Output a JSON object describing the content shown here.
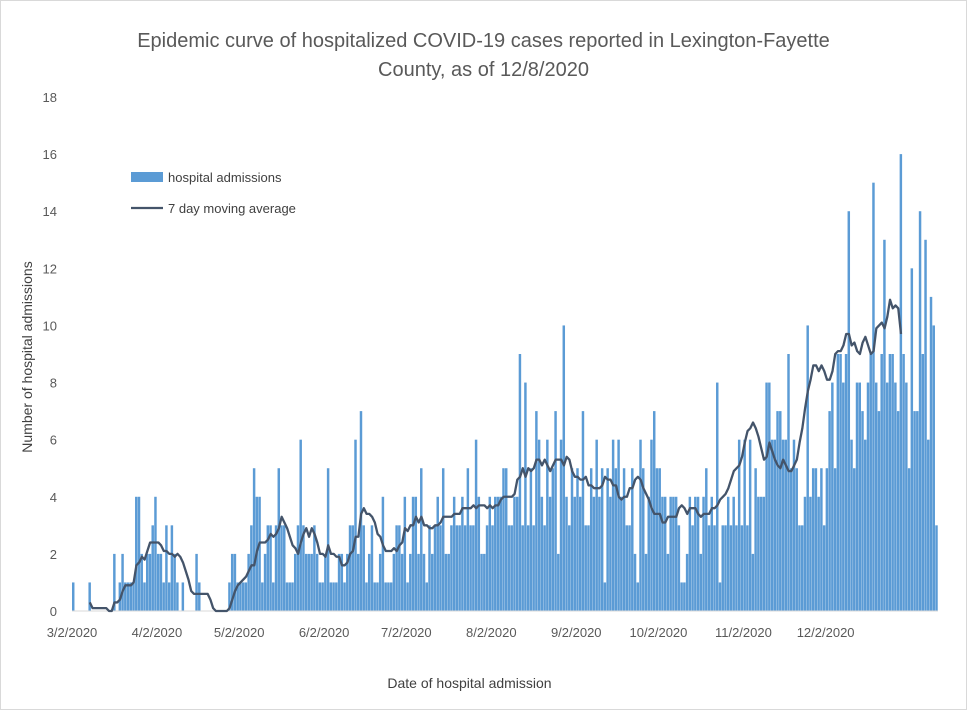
{
  "chart_data": {
    "type": "bar",
    "title": "Epidemic curve of hospitalized COVID-19 cases reported in Lexington-Fayette County, as of 12/8/2020",
    "title_lines": [
      "Epidemic curve of hospitalized COVID-19 cases reported in Lexington-Fayette",
      "County, as of 12/8/2020"
    ],
    "xlabel": "Date of hospital admission",
    "ylabel": "Number of hospital admissions",
    "ylim": [
      0,
      18
    ],
    "y_ticks": [
      0,
      2,
      4,
      6,
      8,
      10,
      12,
      14,
      16,
      18
    ],
    "x_tick_labels": [
      "3/2/2020",
      "4/2/2020",
      "5/2/2020",
      "6/2/2020",
      "7/2/2020",
      "8/2/2020",
      "9/2/2020",
      "10/2/2020",
      "11/2/2020",
      "12/2/2020"
    ],
    "x_tick_offsets": [
      0,
      31,
      61,
      92,
      122,
      153,
      184,
      214,
      245,
      275
    ],
    "start_date": "2020-03-02",
    "end_date": "2020-12-08",
    "grid": false,
    "legend_position": "top-left",
    "colors": {
      "bars": "#5b9bd5",
      "line": "#44546a",
      "text": "#595959",
      "axis": "#d9d9d9"
    },
    "series": [
      {
        "name": "hospital admissions",
        "type": "bar",
        "values": [
          1,
          0,
          0,
          0,
          0,
          0,
          1,
          0,
          0,
          0,
          0,
          0,
          0,
          0,
          0,
          2,
          0,
          1,
          2,
          1,
          1,
          1,
          1,
          4,
          4,
          2,
          1,
          2,
          2,
          3,
          4,
          2,
          2,
          1,
          3,
          1,
          3,
          2,
          1,
          0,
          1,
          0,
          0,
          0,
          0,
          2,
          1,
          0,
          0,
          0,
          0,
          0,
          0,
          0,
          0,
          0,
          0,
          1,
          2,
          2,
          1,
          1,
          1,
          1,
          2,
          3,
          5,
          4,
          4,
          1,
          2,
          3,
          3,
          1,
          3,
          5,
          3,
          3,
          1,
          1,
          1,
          2,
          3,
          6,
          3,
          2,
          2,
          2,
          3,
          2,
          1,
          1,
          2,
          5,
          1,
          1,
          1,
          2,
          2,
          1,
          2,
          3,
          3,
          6,
          2,
          7,
          3,
          1,
          2,
          3,
          1,
          1,
          2,
          4,
          1,
          1,
          1,
          2,
          3,
          3,
          2,
          4,
          1,
          2,
          4,
          4,
          2,
          5,
          2,
          1,
          3,
          2,
          3,
          4,
          3,
          5,
          2,
          2,
          3,
          4,
          3,
          3,
          4,
          3,
          5,
          3,
          3,
          6,
          4,
          2,
          2,
          3,
          4,
          3,
          4,
          4,
          4,
          5,
          5,
          3,
          3,
          4,
          4,
          9,
          3,
          8,
          3,
          5,
          3,
          7,
          6,
          4,
          3,
          6,
          4,
          5,
          7,
          2,
          6,
          10,
          4,
          3,
          5,
          4,
          5,
          4,
          7,
          3,
          3,
          5,
          4,
          6,
          4,
          5,
          1,
          5,
          4,
          6,
          5,
          6,
          4,
          5,
          3,
          3,
          5,
          2,
          1,
          6,
          5,
          2,
          4,
          6,
          7,
          5,
          5,
          4,
          4,
          2,
          4,
          4,
          4,
          3,
          1,
          1,
          2,
          4,
          3,
          4,
          4,
          2,
          4,
          5,
          3,
          4,
          3,
          8,
          1,
          3,
          3,
          4,
          3,
          4,
          3,
          6,
          3,
          6,
          3,
          6,
          2,
          5,
          4,
          4,
          4,
          8,
          8,
          6,
          6,
          7,
          7,
          6,
          6,
          9,
          5,
          6,
          5,
          3,
          3,
          4,
          10,
          4,
          5,
          5,
          4,
          5,
          3,
          5,
          7,
          8,
          5,
          9,
          9,
          8,
          9,
          14,
          6,
          5,
          8,
          8,
          7,
          6,
          8,
          9,
          15,
          8,
          7,
          9,
          13,
          8,
          9,
          9,
          8,
          7,
          16,
          9,
          8,
          5,
          12,
          7,
          7,
          14,
          9,
          13,
          6,
          11,
          10,
          3
        ]
      },
      {
        "name": "7 day moving average",
        "type": "line",
        "values": [
          null,
          null,
          null,
          null,
          null,
          null,
          0.3,
          0.1,
          0.1,
          0.1,
          0.1,
          0.1,
          0.1,
          0.0,
          0.0,
          0.3,
          0.3,
          0.4,
          0.7,
          0.9,
          0.9,
          0.9,
          1.0,
          1.6,
          1.7,
          1.9,
          1.8,
          2.1,
          2.4,
          2.4,
          2.4,
          2.4,
          2.3,
          2.1,
          2.1,
          2.0,
          2.0,
          1.9,
          2.0,
          1.9,
          1.7,
          1.4,
          1.1,
          0.7,
          0.6,
          0.6,
          0.6,
          0.6,
          0.6,
          0.6,
          0.4,
          0.1,
          0.0,
          0.0,
          0.0,
          0.0,
          0.0,
          0.1,
          0.4,
          0.7,
          0.9,
          1.0,
          1.1,
          1.2,
          1.4,
          1.6,
          1.6,
          2.1,
          2.4,
          2.4,
          2.4,
          2.5,
          2.7,
          2.6,
          2.7,
          2.9,
          3.3,
          3.1,
          2.9,
          2.6,
          2.3,
          2.2,
          2.0,
          2.4,
          2.7,
          2.9,
          2.6,
          2.9,
          2.7,
          2.4,
          2.0,
          2.0,
          1.9,
          2.3,
          2.0,
          2.0,
          1.9,
          1.9,
          1.6,
          1.6,
          1.7,
          2.0,
          2.1,
          2.6,
          2.6,
          3.4,
          3.6,
          3.4,
          3.4,
          3.3,
          3.1,
          2.7,
          2.6,
          2.3,
          2.1,
          2.1,
          2.1,
          2.2,
          2.1,
          2.3,
          2.4,
          2.9,
          2.8,
          3.0,
          3.0,
          3.3,
          3.1,
          3.3,
          3.0,
          3.0,
          2.9,
          2.9,
          3.0,
          3.0,
          3.1,
          3.3,
          3.3,
          3.3,
          3.3,
          3.4,
          3.4,
          3.4,
          3.6,
          3.6,
          3.6,
          3.6,
          3.7,
          3.6,
          3.7,
          3.7,
          3.7,
          3.6,
          3.7,
          3.6,
          3.7,
          3.7,
          3.9,
          4.0,
          4.0,
          4.0,
          4.0,
          4.1,
          4.6,
          4.7,
          5.0,
          4.7,
          5.0,
          4.9,
          5.0,
          5.3,
          5.3,
          5.1,
          5.3,
          5.1,
          4.9,
          5.1,
          5.3,
          5.3,
          5.3,
          5.1,
          5.4,
          5.3,
          4.9,
          4.7,
          4.7,
          4.6,
          4.6,
          4.7,
          4.4,
          4.4,
          4.3,
          4.3,
          4.3,
          4.4,
          4.7,
          4.6,
          4.6,
          4.4,
          4.4,
          4.0,
          3.9,
          4.0,
          4.0,
          4.3,
          4.3,
          4.6,
          4.7,
          4.6,
          4.3,
          4.1,
          3.9,
          3.6,
          3.4,
          3.4,
          3.4,
          3.1,
          3.1,
          3.3,
          3.3,
          3.3,
          3.3,
          3.6,
          3.7,
          3.6,
          3.4,
          3.6,
          3.6,
          3.6,
          3.4,
          3.3,
          3.4,
          3.4,
          3.4,
          3.6,
          3.6,
          3.7,
          3.9,
          4.0,
          4.1,
          4.3,
          4.6,
          4.9,
          5.0,
          5.1,
          5.4,
          5.9,
          6.3,
          6.4,
          6.6,
          6.4,
          6.1,
          5.7,
          5.3,
          5.4,
          5.9,
          5.6,
          5.3,
          5.1,
          5.0,
          5.3,
          5.1,
          4.9,
          4.9,
          5.1,
          5.3,
          5.9,
          6.4,
          7.1,
          7.7,
          8.1,
          8.6,
          8.6,
          8.4,
          8.6,
          8.4,
          8.1,
          8.1,
          8.4,
          9.0,
          9.1,
          9.1,
          9.3,
          9.7,
          9.7,
          9.3,
          9.4,
          9.1,
          9.0,
          9.4,
          9.6,
          9.3,
          9.0,
          9.1,
          9.9,
          10.0,
          10.1,
          9.9,
          10.3,
          10.9,
          10.6,
          10.7,
          10.6,
          9.7
        ]
      }
    ]
  }
}
